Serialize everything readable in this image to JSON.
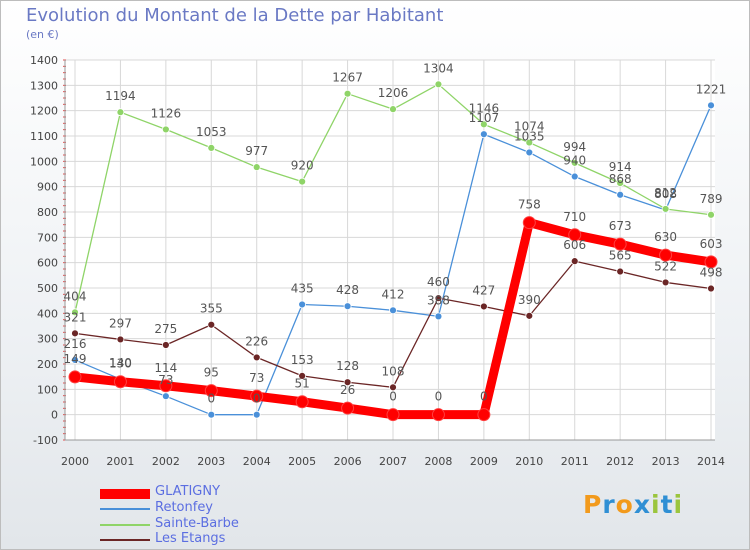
{
  "header": {
    "title": "Evolution du Montant de la Dette par Habitant",
    "unit": "(en €)"
  },
  "logo": {
    "text": "Proxiti",
    "letters": [
      "P",
      "r",
      "o",
      "x",
      "i",
      "t",
      "i"
    ],
    "colors": [
      "#f29a1c",
      "#2f8fd4",
      "#f29a1c",
      "#2f8fd4",
      "#9bc53d",
      "#2f8fd4",
      "#9bc53d"
    ]
  },
  "chart_data": {
    "type": "line",
    "title": "Evolution du Montant de la Dette par Habitant",
    "ylabel": "(en €)",
    "xlabel": "",
    "ylim": [
      -100,
      1400
    ],
    "yticks": [
      -100,
      0,
      100,
      200,
      300,
      400,
      500,
      600,
      700,
      800,
      900,
      1000,
      1100,
      1200,
      1300,
      1400
    ],
    "categories": [
      "2000",
      "2001",
      "2002",
      "2003",
      "2004",
      "2005",
      "2006",
      "2007",
      "2008",
      "2009",
      "2010",
      "2011",
      "2012",
      "2013",
      "2014"
    ],
    "grid": true,
    "series": [
      {
        "name": "GLATIGNY",
        "color": "#ff0000",
        "values": [
          149,
          130,
          114,
          95,
          73,
          51,
          26,
          0,
          0,
          0,
          758,
          710,
          673,
          630,
          603
        ]
      },
      {
        "name": "Retonfey",
        "color": "#4a90d9",
        "values": [
          216,
          140,
          73,
          0,
          0,
          435,
          428,
          412,
          388,
          1107,
          1035,
          940,
          868,
          808,
          1221
        ]
      },
      {
        "name": "Sainte-Barbe",
        "color": "#8fd468",
        "values": [
          404,
          1194,
          1126,
          1053,
          977,
          920,
          1267,
          1206,
          1304,
          1146,
          1074,
          994,
          914,
          812,
          789
        ]
      },
      {
        "name": "Les Etangs",
        "color": "#6b2626",
        "values": [
          321,
          297,
          275,
          355,
          226,
          153,
          128,
          108,
          460,
          427,
          390,
          606,
          565,
          522,
          498
        ]
      }
    ]
  }
}
